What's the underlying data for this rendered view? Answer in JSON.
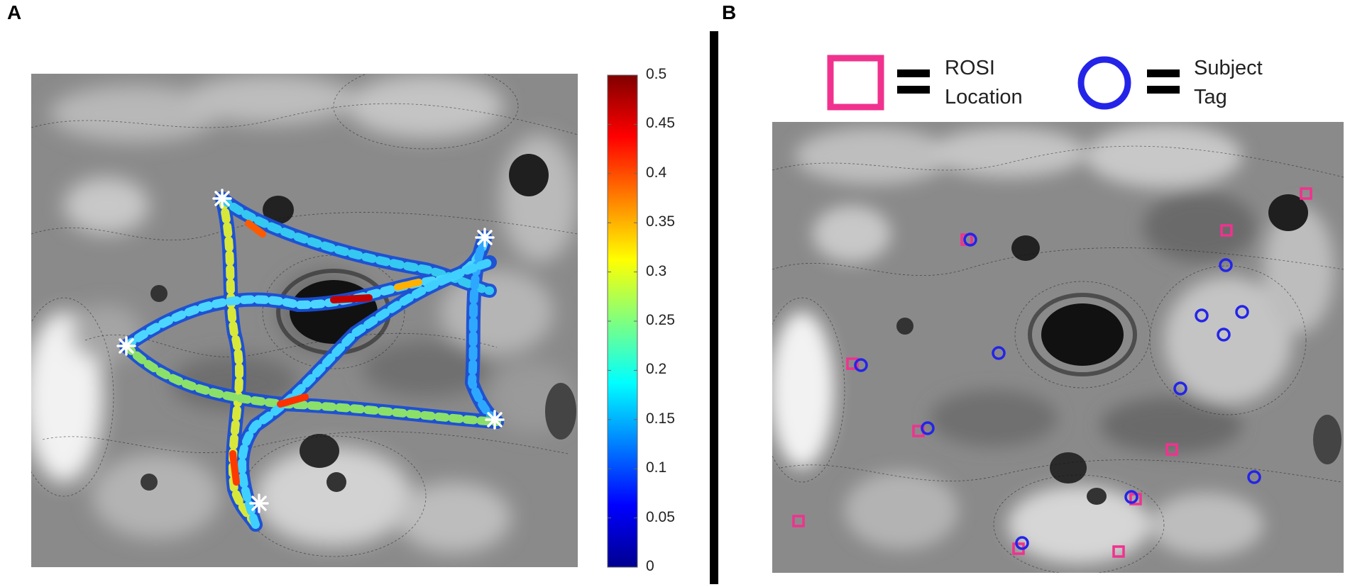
{
  "panels": {
    "a_label": "A",
    "b_label": "B"
  },
  "colorbar": {
    "ticks": [
      "0.5",
      "0.45",
      "0.4",
      "0.35",
      "0.3",
      "0.25",
      "0.2",
      "0.15",
      "0.1",
      "0.05",
      "0"
    ],
    "min": 0,
    "max": 0.5
  },
  "legend": {
    "rosi": {
      "line1": "ROSI",
      "line2": "Location",
      "color": "#f0328e"
    },
    "subject": {
      "line1": "Subject",
      "line2": "Tag",
      "color": "#2424e8"
    }
  },
  "colors": {
    "divider": "#000000",
    "star": "#ffffff",
    "trail_colormap": "jet"
  }
}
